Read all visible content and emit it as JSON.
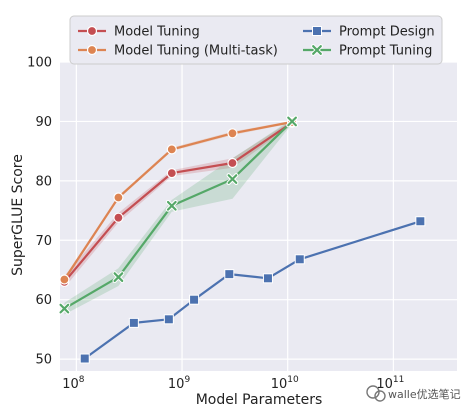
{
  "chart_data": {
    "type": "line",
    "xlabel": "Model Parameters",
    "ylabel": "SuperGLUE Score",
    "x_scale": "log",
    "xlim": [
      70000000,
      400000000000
    ],
    "ylim": [
      48,
      100
    ],
    "x_tick_values": [
      100000000,
      1000000000,
      10000000000,
      100000000000
    ],
    "x_tick_labels": [
      {
        "base": "10",
        "exp": "8"
      },
      {
        "base": "10",
        "exp": "9"
      },
      {
        "base": "10",
        "exp": "10"
      },
      {
        "base": "10",
        "exp": "11"
      }
    ],
    "y_ticks": [
      50,
      60,
      70,
      80,
      90,
      100
    ],
    "grid": true,
    "legend_position": "top",
    "series": [
      {
        "name": "Model Tuning",
        "color": "#c44e52",
        "marker": "circle",
        "x": [
          77000000,
          250000000,
          800000000,
          3000000000,
          11000000000
        ],
        "y": [
          63.0,
          73.8,
          81.3,
          83.0,
          89.8
        ],
        "band": [
          [
            62.0,
            64.0
          ],
          [
            73.0,
            74.6
          ],
          [
            80.8,
            81.8
          ],
          [
            82.2,
            83.8
          ],
          [
            89.4,
            90.2
          ]
        ]
      },
      {
        "name": "Model Tuning (Multi-task)",
        "color": "#dd8452",
        "marker": "circle",
        "x": [
          77000000,
          250000000,
          800000000,
          3000000000,
          11000000000
        ],
        "y": [
          63.4,
          77.2,
          85.3,
          88.0,
          89.9
        ],
        "band": [
          [
            63.0,
            63.8
          ],
          [
            76.9,
            77.5
          ],
          [
            85.0,
            85.6
          ],
          [
            87.7,
            88.3
          ],
          [
            89.7,
            90.1
          ]
        ]
      },
      {
        "name": "Prompt Design",
        "color": "#4c72b0",
        "marker": "square",
        "x": [
          120000000,
          350000000,
          750000000,
          1300000000,
          2800000000,
          6500000000,
          13000000000,
          180000000000
        ],
        "y": [
          50.1,
          56.1,
          56.7,
          60.0,
          64.3,
          63.6,
          66.8,
          73.2
        ]
      },
      {
        "name": "Prompt Tuning",
        "color": "#55a868",
        "marker": "x",
        "x": [
          77000000,
          250000000,
          800000000,
          3000000000,
          11000000000
        ],
        "y": [
          58.5,
          63.8,
          75.8,
          80.3,
          90.0
        ],
        "band": [
          [
            57.5,
            59.5
          ],
          [
            62.3,
            65.3
          ],
          [
            74.8,
            76.8
          ],
          [
            77.0,
            83.8
          ],
          [
            89.6,
            90.4
          ]
        ]
      }
    ]
  },
  "watermark": {
    "text": "walle优选笔记",
    "icon": "wechat-logo-icon"
  }
}
